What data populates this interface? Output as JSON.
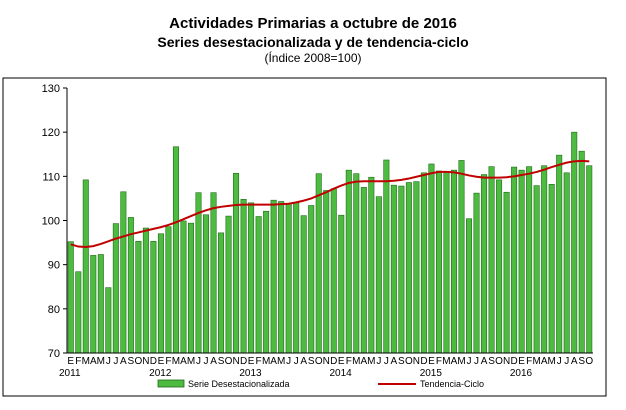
{
  "header": {
    "title": "Actividades Primarias a octubre de 2016",
    "subtitle": "Series desestacionalizada y de tendencia-ciclo",
    "note": "(Índice 2008=100)"
  },
  "colors": {
    "bar_fill": "#4dbb40",
    "bar_stroke": "#1f6b1a",
    "trend": "#c00000",
    "axis": "#000000"
  },
  "chart_data": {
    "type": "bar",
    "ylim": [
      70,
      130
    ],
    "yticks": [
      70,
      80,
      90,
      100,
      110,
      120,
      130
    ],
    "grid": false,
    "legend_position": "bottom",
    "month_letters": "EFMAMJJASOND",
    "year_labels": [
      {
        "label": "2011",
        "index": 0
      },
      {
        "label": "2012",
        "index": 12
      },
      {
        "label": "2013",
        "index": 24
      },
      {
        "label": "2014",
        "index": 36
      },
      {
        "label": "2015",
        "index": 48
      },
      {
        "label": "2016",
        "index": 60
      }
    ],
    "series": [
      {
        "name": "Serie Desestacionalizada",
        "type": "bar",
        "values": [
          95.2,
          88.4,
          109.2,
          92.1,
          92.3,
          84.8,
          99.3,
          106.5,
          100.7,
          95.3,
          98.3,
          95.3,
          97.0,
          98.6,
          116.7,
          99.9,
          99.4,
          106.3,
          101.3,
          106.3,
          97.2,
          101.0,
          110.7,
          104.8,
          104.0,
          100.9,
          102.1,
          104.6,
          104.3,
          103.8,
          104.1,
          101.1,
          103.4,
          110.6,
          106.8,
          107.2,
          101.2,
          111.4,
          110.6,
          107.5,
          109.8,
          105.4,
          113.7,
          108.0,
          107.8,
          108.6,
          108.8,
          110.8,
          112.8,
          111.2,
          111.0,
          111.4,
          113.6,
          100.4,
          106.2,
          110.4,
          112.2,
          109.2,
          106.4,
          112.1,
          111.4,
          112.2,
          107.9,
          112.4,
          108.2,
          114.8,
          110.8,
          120.0,
          115.7,
          112.4
        ]
      },
      {
        "name": "Tendencia-Ciclo",
        "type": "line",
        "values": [
          94.6,
          94.1,
          94.0,
          94.2,
          94.7,
          95.3,
          95.9,
          96.4,
          96.9,
          97.3,
          97.7,
          98.1,
          98.5,
          99.0,
          99.6,
          100.3,
          101.0,
          101.7,
          102.3,
          102.8,
          103.1,
          103.3,
          103.5,
          103.6,
          103.6,
          103.6,
          103.6,
          103.6,
          103.7,
          103.8,
          104.1,
          104.5,
          105.0,
          105.7,
          106.4,
          107.2,
          107.9,
          108.5,
          108.8,
          108.9,
          108.9,
          108.9,
          108.9,
          109.0,
          109.2,
          109.5,
          109.9,
          110.3,
          110.7,
          111.0,
          111.0,
          110.9,
          110.6,
          110.2,
          109.9,
          109.7,
          109.7,
          109.7,
          109.8,
          110.0,
          110.3,
          110.6,
          111.0,
          111.5,
          112.1,
          112.6,
          113.1,
          113.4,
          113.5,
          113.4
        ]
      }
    ]
  }
}
